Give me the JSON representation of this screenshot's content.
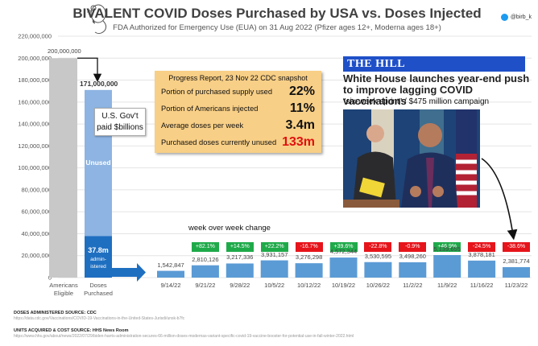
{
  "header": {
    "title": "BIVALENT COVID Doses Purchased by USA vs. Doses Injected",
    "subtitle": "FDA Authorized for Emergency Use (EUA) on 31 Aug 2022 (Pfizer ages 12+, Moderna ages 18+)",
    "handle": "@birb_k",
    "handle_icon": "twitter-bird-icon",
    "logo_icon": "mouse-icon"
  },
  "progress_report": {
    "heading": "Progress Report, 23 Nov 22 CDC snapshot",
    "rows": [
      {
        "label": "Portion of purchased supply used",
        "value": "22%"
      },
      {
        "label": "Portion of Americans injected",
        "value": "11%"
      },
      {
        "label": "Average doses per week",
        "value": "3.4m"
      },
      {
        "label": "Purchased doses currently unused",
        "value": "133m",
        "highlight": "#e01010"
      }
    ]
  },
  "news": {
    "outlet": "THE HILL",
    "headline": "White House launches year-end push to improve lagging COVID vaccinations",
    "subline": "\"six-week sprint\" / $475 million campaign",
    "photo_icon": "press-briefing-photo"
  },
  "annotations": {
    "gov_note_line1": "U.S. Gov't",
    "gov_note_line2": "paid $billions",
    "unused_label": "Unused",
    "administered_value": "37.8m",
    "administered_line1": "admin-",
    "administered_line2": "istered",
    "eligible_value_label": "200,000,000",
    "purchased_value_label": "171,000,000",
    "wow_label": "week over week change"
  },
  "colors": {
    "eligible_bar": "#c8c8c8",
    "purchased_bar": "#8db4e2",
    "administered_bar": "#1f6fc1",
    "weekly_bar": "#5b9bd5",
    "positive": "#1faa4a",
    "negative": "#e6141b",
    "banner": "#1f50c8",
    "progress_bg": "#f8cf86"
  },
  "chart_data": {
    "type": "bar",
    "title": "BIVALENT COVID Doses Purchased by USA vs. Doses Injected",
    "ylim": [
      0,
      220000000
    ],
    "yticks": [
      "0",
      "20,000,000",
      "40,000,000",
      "60,000,000",
      "80,000,000",
      "100,000,000",
      "120,000,000",
      "140,000,000",
      "160,000,000",
      "180,000,000",
      "200,000,000",
      "220,000,000"
    ],
    "ytick_values": [
      0,
      20000000,
      40000000,
      60000000,
      80000000,
      100000000,
      120000000,
      140000000,
      160000000,
      180000000,
      200000000,
      220000000
    ],
    "grid": true,
    "summary_bars": [
      {
        "category_line1": "Americans",
        "category_line2": "Eligible",
        "value": 200000000
      },
      {
        "category_line1": "Doses",
        "category_line2": "Purchased",
        "value": 171000000,
        "administered": 37800000
      }
    ],
    "weekly": {
      "categories": [
        "9/14/22",
        "9/21/22",
        "9/28/22",
        "10/5/22",
        "10/12/22",
        "10/19/22",
        "10/26/22",
        "11/2/22",
        "11/9/22",
        "11/16/22",
        "11/23/22"
      ],
      "values": [
        1542847,
        2810126,
        3217336,
        3931157,
        3276298,
        4572344,
        3530595,
        3498260,
        5139655,
        3878181,
        2381774
      ],
      "value_labels": [
        "1,542,847",
        "2,810,126",
        "3,217,336",
        "3,931,157",
        "3,276,298",
        "4,572,344",
        "3,530,595",
        "3,498,260",
        "5,139,655",
        "3,878,181",
        "2,381,774"
      ],
      "changes": [
        null,
        "+82.1%",
        "+14.5%",
        "+22.2%",
        "-16.7%",
        "+39.6%",
        "-22.8%",
        "-0.9%",
        "+46.9%",
        "-24.5%",
        "-38.6%"
      ]
    }
  },
  "sources": {
    "administered_title": "DOSES ADMINISTERED SOURCE: CDC",
    "administered_url": "https://data.cdc.gov/Vaccinations/COVID-19-Vaccinations-in-the-United-States-Jurisdi/unsk-b7fc",
    "units_title": "UNITS ACQUIRED & COST SOURCE: HHS News Room",
    "units_url": "https://www.hhs.gov/about/news/2022/07/29/biden-harris-administration-secures-66-million-doses-modernas-variant-specific-covid-19-vaccine-booster-for-potential-use-in-fall-winter-2022.html"
  }
}
